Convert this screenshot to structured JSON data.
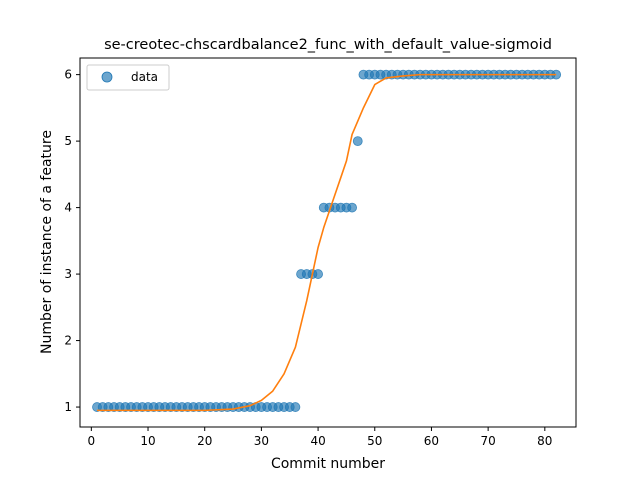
{
  "chart_data": {
    "type": "scatter",
    "title": "se-creotec-chscardbalance2_func_with_default_value-sigmoid",
    "xlabel": "Commit number",
    "ylabel": "Number of instance of a feature",
    "xlim": [
      -2,
      85.5
    ],
    "ylim": [
      0.7,
      6.25
    ],
    "xticks": [
      0,
      10,
      20,
      30,
      40,
      50,
      60,
      70,
      80
    ],
    "yticks": [
      1,
      2,
      3,
      4,
      5,
      6
    ],
    "legend": {
      "position": "top-left",
      "entries": [
        "data"
      ]
    },
    "grid": false,
    "colors": {
      "data": "#1f77b4",
      "fit": "#ff7f0e"
    },
    "series": [
      {
        "name": "data",
        "kind": "scatter",
        "x": [
          1,
          2,
          3,
          4,
          5,
          6,
          7,
          8,
          9,
          10,
          11,
          12,
          13,
          14,
          15,
          16,
          17,
          18,
          19,
          20,
          21,
          22,
          23,
          24,
          25,
          26,
          27,
          28,
          29,
          30,
          31,
          32,
          33,
          34,
          35,
          36,
          37,
          38,
          39,
          40,
          41,
          42,
          43,
          44,
          45,
          46,
          47,
          48,
          49,
          50,
          51,
          52,
          53,
          54,
          55,
          56,
          57,
          58,
          59,
          60,
          61,
          62,
          63,
          64,
          65,
          66,
          67,
          68,
          69,
          70,
          71,
          72,
          73,
          74,
          75,
          76,
          77,
          78,
          79,
          80,
          81,
          82
        ],
        "y": [
          1,
          1,
          1,
          1,
          1,
          1,
          1,
          1,
          1,
          1,
          1,
          1,
          1,
          1,
          1,
          1,
          1,
          1,
          1,
          1,
          1,
          1,
          1,
          1,
          1,
          1,
          1,
          1,
          1,
          1,
          1,
          1,
          1,
          1,
          1,
          1,
          3,
          3,
          3,
          3,
          4,
          4,
          4,
          4,
          4,
          4,
          5,
          6,
          6,
          6,
          6,
          6,
          6,
          6,
          6,
          6,
          6,
          6,
          6,
          6,
          6,
          6,
          6,
          6,
          6,
          6,
          6,
          6,
          6,
          6,
          6,
          6,
          6,
          6,
          6,
          6,
          6,
          6,
          6,
          6,
          6,
          6
        ]
      },
      {
        "kind": "line",
        "x": [
          1,
          5,
          10,
          15,
          20,
          25,
          28,
          30,
          32,
          34,
          36,
          38,
          40,
          41,
          42,
          43,
          44,
          45,
          46,
          48,
          50,
          52,
          55,
          58,
          60,
          65,
          70,
          75,
          80,
          82
        ],
        "y": [
          0.95,
          0.95,
          0.95,
          0.95,
          0.95,
          0.97,
          1.02,
          1.1,
          1.24,
          1.5,
          1.9,
          2.6,
          3.4,
          3.7,
          3.95,
          4.2,
          4.45,
          4.7,
          5.1,
          5.5,
          5.85,
          5.95,
          5.98,
          6.0,
          6.0,
          6.0,
          6.0,
          6.0,
          6.0,
          6.0
        ]
      }
    ]
  }
}
